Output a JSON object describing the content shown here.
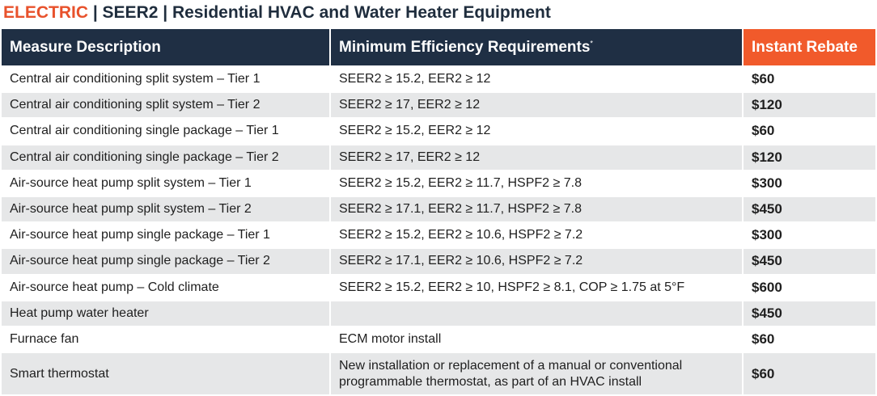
{
  "title": {
    "accent": "ELECTRIC",
    "rest": " | SEER2 | Residential HVAC and Water Heater Equipment"
  },
  "colors": {
    "title_accent": "#e8522c",
    "header_bg": "#1f2f44",
    "rebate_header_bg": "#f15a2b",
    "row_alt_bg": "#e6e7e8"
  },
  "table": {
    "headers": {
      "measure": "Measure Description",
      "efficiency": "Minimum Efficiency Requirements",
      "efficiency_mark": "*",
      "rebate": "Instant Rebate"
    },
    "rows": [
      {
        "measure": "Central air conditioning split system – Tier 1",
        "efficiency": "SEER2 ≥ 15.2, EER2 ≥ 12",
        "rebate": "$60"
      },
      {
        "measure": "Central air conditioning split system – Tier 2",
        "efficiency": "SEER2 ≥ 17, EER2 ≥ 12",
        "rebate": "$120"
      },
      {
        "measure": "Central air conditioning single package – Tier 1",
        "efficiency": "SEER2 ≥ 15.2, EER2 ≥ 12",
        "rebate": "$60"
      },
      {
        "measure": "Central air conditioning single package – Tier 2",
        "efficiency": "SEER2 ≥ 17, EER2 ≥ 12",
        "rebate": "$120"
      },
      {
        "measure": "Air-source heat pump split system – Tier 1",
        "efficiency": "SEER2 ≥ 15.2, EER2 ≥ 11.7, HSPF2 ≥ 7.8",
        "rebate": "$300"
      },
      {
        "measure": "Air-source heat pump split system – Tier 2",
        "efficiency": "SEER2 ≥ 17.1, EER2 ≥ 11.7, HSPF2 ≥ 7.8",
        "rebate": "$450"
      },
      {
        "measure": "Air-source heat pump single package – Tier 1",
        "efficiency": "SEER2 ≥ 15.2, EER2 ≥ 10.6, HSPF2 ≥ 7.2",
        "rebate": "$300"
      },
      {
        "measure": "Air-source heat pump single package – Tier 2",
        "efficiency": "SEER2 ≥ 17.1, EER2 ≥ 10.6, HSPF2 ≥ 7.2",
        "rebate": "$450"
      },
      {
        "measure": "Air-source heat pump – Cold climate",
        "efficiency": "SEER2 ≥ 15.2, EER2 ≥ 10, HSPF2 ≥ 8.1, COP ≥ 1.75 at 5°F",
        "rebate": "$600"
      },
      {
        "measure": "Heat pump water heater",
        "efficiency": "",
        "rebate": "$450"
      },
      {
        "measure": "Furnace fan",
        "efficiency": "ECM motor install",
        "rebate": "$60"
      },
      {
        "measure": "Smart thermostat",
        "efficiency": "New installation or replacement of a manual or conventional programmable thermostat, as part of an HVAC install",
        "rebate": "$60"
      }
    ]
  }
}
